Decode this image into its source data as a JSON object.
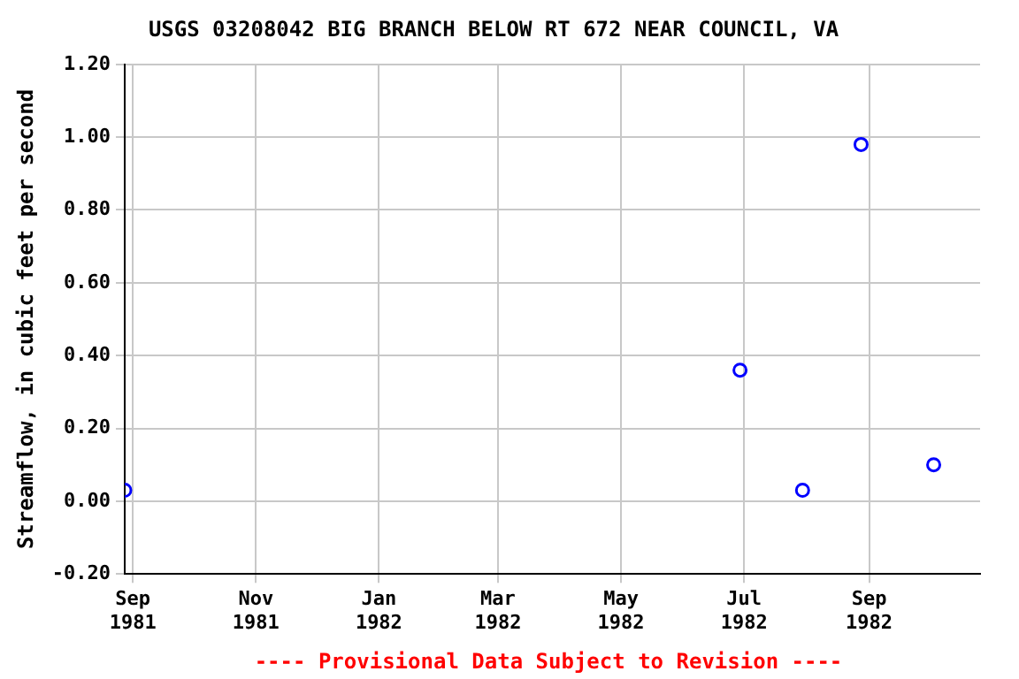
{
  "chart_data": {
    "type": "scatter",
    "title": "USGS 03208042 BIG BRANCH BELOW RT 672 NEAR COUNCIL, VA",
    "ylabel": "Streamflow, in cubic feet per second",
    "x": [
      "1981-08-28",
      "1982-06-29",
      "1982-07-30",
      "1982-08-28",
      "1982-10-03"
    ],
    "series": [
      {
        "color": "#0000ff",
        "values": [
          0.03,
          0.36,
          0.03,
          0.98,
          0.1
        ]
      }
    ],
    "xlim": [
      "1981-08-28",
      "1982-10-26"
    ],
    "xticks": [
      {
        "value": "1981-09-01",
        "label": "Sep\n1981"
      },
      {
        "value": "1981-11-01",
        "label": "Nov\n1981"
      },
      {
        "value": "1982-01-01",
        "label": "Jan\n1982"
      },
      {
        "value": "1982-03-01",
        "label": "Mar\n1982"
      },
      {
        "value": "1982-05-01",
        "label": "May\n1982"
      },
      {
        "value": "1982-07-01",
        "label": "Jul\n1982"
      },
      {
        "value": "1982-09-01",
        "label": "Sep\n1982"
      }
    ],
    "ylim": [
      -0.2,
      1.2
    ],
    "yticks": [
      {
        "value": -0.2,
        "label": "-0.20"
      },
      {
        "value": 0,
        "label": "0.00"
      },
      {
        "value": 0.2,
        "label": "0.20"
      },
      {
        "value": 0.4,
        "label": "0.40"
      },
      {
        "value": 0.6,
        "label": "0.60"
      },
      {
        "value": 0.8,
        "label": "0.80"
      },
      {
        "value": 1,
        "label": "1.00"
      },
      {
        "value": 1.2,
        "label": "1.20"
      }
    ],
    "grid": true,
    "marker": "circle",
    "legend": false,
    "annotations": [
      "---- Provisional Data Subject to Revision ----"
    ]
  }
}
